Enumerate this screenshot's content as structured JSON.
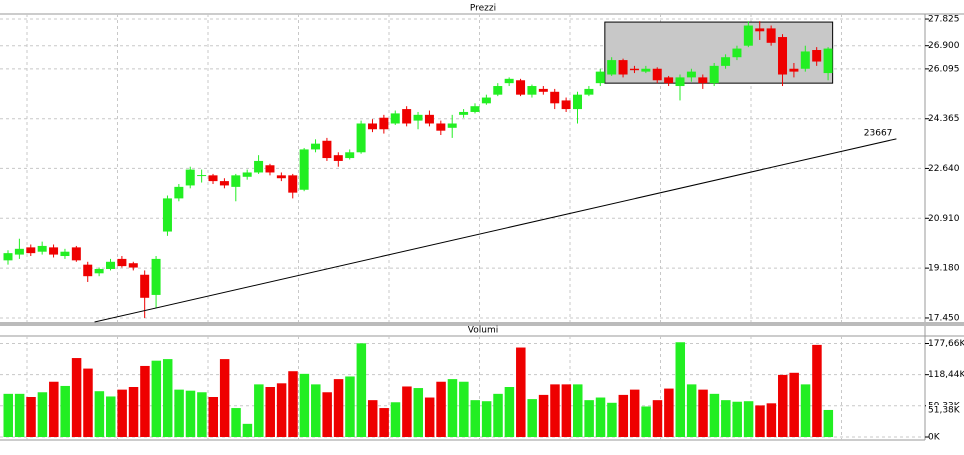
{
  "chart_data": {
    "type": "candlestick",
    "title": "Prezzi",
    "up_color": "#22ee22",
    "down_color": "#ee0000",
    "ylim": [
      17310,
      28000
    ],
    "yticks": [
      {
        "value": 17450,
        "label": "17.450"
      },
      {
        "value": 19180,
        "label": "19.180"
      },
      {
        "value": 20910,
        "label": "20.910"
      },
      {
        "value": 22640,
        "label": "22.640"
      },
      {
        "value": 24365,
        "label": "24.365"
      },
      {
        "value": 26095,
        "label": "26.095"
      },
      {
        "value": 26900,
        "label": "26.900"
      },
      {
        "value": 27825,
        "label": "27.825"
      }
    ],
    "grid": true,
    "open": [
      19450,
      19650,
      19900,
      19750,
      19900,
      19600,
      19900,
      19300,
      19000,
      19150,
      19500,
      19350,
      18950,
      18250,
      20450,
      21600,
      22050,
      22400,
      22400,
      22200,
      22000,
      22350,
      22500,
      22750,
      22400,
      22400,
      21900,
      23300,
      23600,
      23100,
      23000,
      23200,
      24200,
      24400,
      24200,
      24700,
      24300,
      24500,
      24200,
      24050,
      24500,
      24600,
      24900,
      25200,
      25600,
      25700,
      25200,
      25400,
      25300,
      25000,
      24700,
      25200,
      25600,
      25900,
      26400,
      26100,
      26000,
      26100,
      25800,
      25500,
      25800,
      25800,
      25600,
      26200,
      26500,
      26900,
      27500,
      27500,
      27200,
      26100,
      26100,
      26750,
      25950
    ],
    "high": [
      19800,
      20200,
      20000,
      20100,
      20000,
      19850,
      19950,
      19400,
      19200,
      19500,
      19600,
      19400,
      19100,
      19600,
      21700,
      22100,
      22700,
      22600,
      22450,
      22300,
      22450,
      22600,
      23100,
      22800,
      22500,
      22450,
      23350,
      23650,
      23700,
      23200,
      23300,
      24300,
      24350,
      24500,
      24650,
      24800,
      24600,
      24650,
      24300,
      24500,
      24700,
      24900,
      25200,
      25600,
      25800,
      25750,
      25550,
      25500,
      25400,
      25100,
      25300,
      25500,
      26100,
      26500,
      26450,
      26200,
      26200,
      26150,
      25850,
      25900,
      26100,
      25900,
      26300,
      26600,
      26900,
      27750,
      27750,
      27600,
      27300,
      26300,
      26900,
      26850,
      26850
    ],
    "low": [
      19300,
      19500,
      19600,
      19650,
      19550,
      19500,
      19400,
      18700,
      18900,
      19100,
      19200,
      19100,
      17450,
      17800,
      20300,
      21500,
      21950,
      22150,
      22100,
      21950,
      21500,
      22250,
      22450,
      22400,
      22200,
      21600,
      21850,
      23200,
      22900,
      22700,
      22950,
      23150,
      23900,
      23850,
      24150,
      24100,
      24000,
      24100,
      23800,
      23700,
      24400,
      24550,
      24850,
      25150,
      25500,
      25150,
      25100,
      25200,
      24700,
      24600,
      24200,
      25150,
      25500,
      25850,
      25800,
      25950,
      25950,
      25600,
      25500,
      25000,
      25650,
      25400,
      25500,
      26100,
      26400,
      26850,
      27100,
      26900,
      25500,
      25800,
      26000,
      26200,
      25700
    ],
    "close": [
      19700,
      19850,
      19700,
      19950,
      19650,
      19750,
      19450,
      18900,
      19150,
      19400,
      19250,
      19200,
      18150,
      19500,
      21600,
      22000,
      22600,
      22410,
      22200,
      22050,
      22400,
      22500,
      22900,
      22500,
      22300,
      21800,
      23300,
      23500,
      23000,
      22900,
      23200,
      24200,
      24000,
      24000,
      24550,
      24200,
      24500,
      24200,
      23950,
      24200,
      24600,
      24800,
      25100,
      25500,
      25750,
      25200,
      25500,
      25300,
      24900,
      24700,
      25200,
      25400,
      26000,
      26400,
      25900,
      26050,
      26100,
      25700,
      25600,
      25800,
      26000,
      25600,
      26200,
      26500,
      26800,
      27600,
      27400,
      27000,
      25900,
      26000,
      26700,
      26350,
      26800
    ],
    "trendline": {
      "x0": 7.6,
      "y0": 17310,
      "x1": 78,
      "y1": 23667
    },
    "box": {
      "x0": 52.4,
      "x1": 72.4,
      "y0": 25600,
      "y1": 27720
    },
    "volume": {
      "title": "Volumi",
      "ylim": [
        0,
        190000
      ],
      "yticks": [
        {
          "value": 0,
          "label": "0K"
        },
        {
          "value": 59330,
          "label": "59,33K"
        },
        {
          "value": 118440,
          "label": "118,44K"
        },
        {
          "value": 177660,
          "label": "177,66K"
        }
      ],
      "values": [
        82000,
        82000,
        76000,
        85000,
        105000,
        97000,
        150000,
        130000,
        87000,
        77000,
        90000,
        95000,
        135000,
        145000,
        148000,
        90000,
        88000,
        85000,
        76000,
        148000,
        55000,
        25000,
        100000,
        95000,
        102000,
        125000,
        120000,
        100000,
        85000,
        110000,
        115000,
        178000,
        70000,
        55000,
        66000,
        96000,
        93000,
        75000,
        105000,
        110000,
        105000,
        70000,
        68000,
        82000,
        95000,
        170000,
        72000,
        80000,
        100000,
        100000,
        100000,
        70000,
        75000,
        65000,
        80000,
        90000,
        58000,
        70000,
        92000,
        180000,
        100000,
        90000,
        82000,
        70000,
        67000,
        68000,
        60000,
        64000,
        118000,
        122000,
        100000,
        175000,
        51380
      ],
      "last_label": "51,38K"
    }
  }
}
